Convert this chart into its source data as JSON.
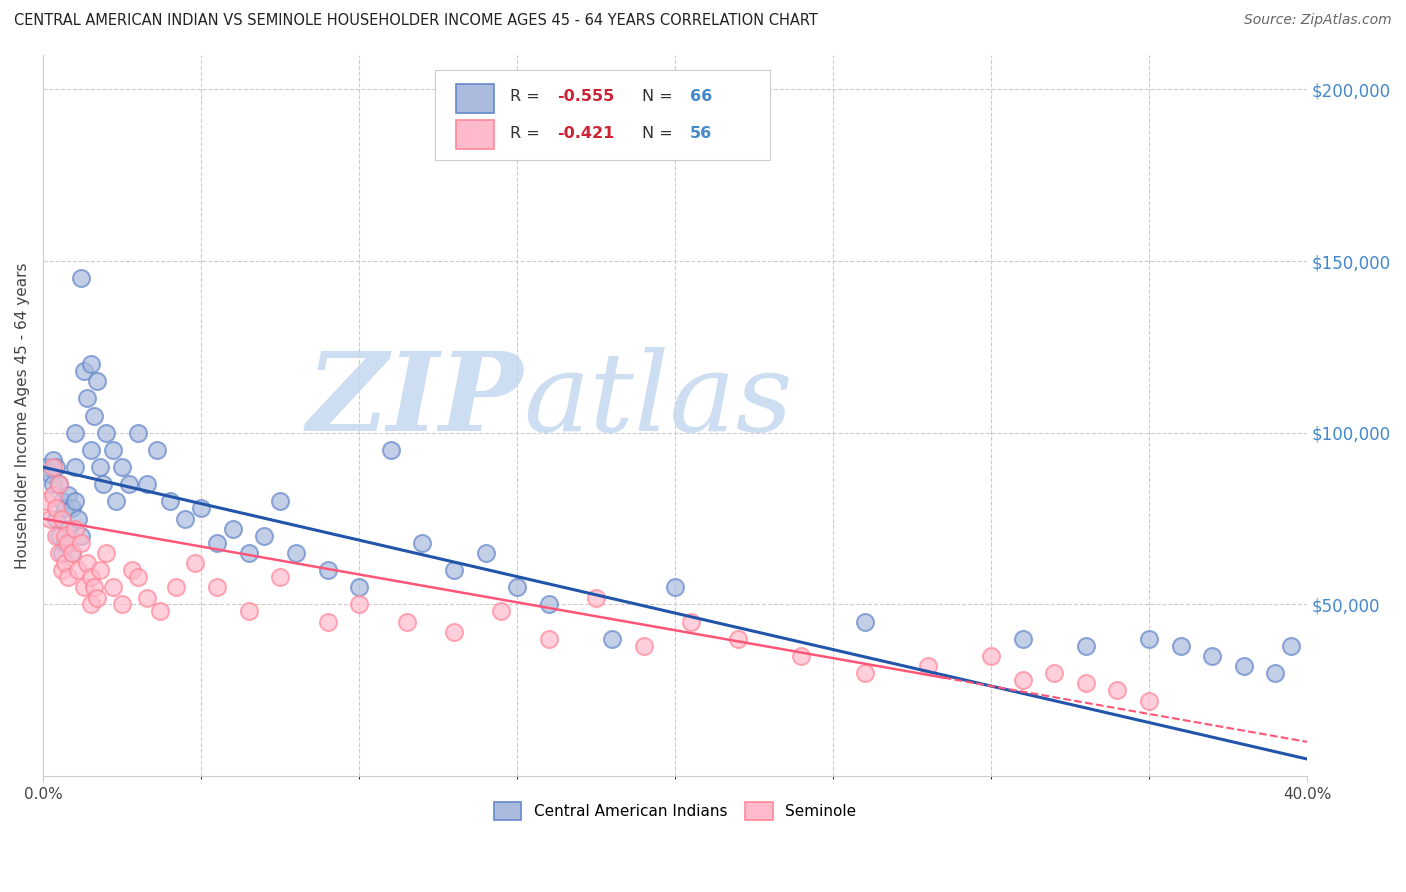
{
  "title": "CENTRAL AMERICAN INDIAN VS SEMINOLE HOUSEHOLDER INCOME AGES 45 - 64 YEARS CORRELATION CHART",
  "source": "Source: ZipAtlas.com",
  "ylabel": "Householder Income Ages 45 - 64 years",
  "xlim": [
    0.0,
    0.4
  ],
  "ylim": [
    0,
    210000
  ],
  "legend_blue_R": "-0.555",
  "legend_blue_N": "66",
  "legend_pink_R": "-0.421",
  "legend_pink_N": "56",
  "blue_scatter_color": "#AABBDD",
  "blue_edge_color": "#6688CC",
  "pink_scatter_color": "#FFBBCC",
  "pink_edge_color": "#FF8899",
  "blue_line_color": "#2255AA",
  "pink_line_color": "#FF5577",
  "watermark_color": "#C5D8F0",
  "background_color": "#FFFFFF",
  "grid_color": "#CCCCCC",
  "right_axis_color": "#4488CC",
  "blue_x": [
    0.001,
    0.002,
    0.003,
    0.003,
    0.004,
    0.004,
    0.005,
    0.005,
    0.006,
    0.006,
    0.007,
    0.007,
    0.008,
    0.008,
    0.009,
    0.009,
    0.01,
    0.01,
    0.01,
    0.011,
    0.012,
    0.012,
    0.013,
    0.014,
    0.015,
    0.015,
    0.016,
    0.017,
    0.018,
    0.019,
    0.02,
    0.022,
    0.023,
    0.025,
    0.027,
    0.03,
    0.033,
    0.036,
    0.04,
    0.045,
    0.05,
    0.055,
    0.06,
    0.065,
    0.07,
    0.075,
    0.08,
    0.09,
    0.1,
    0.11,
    0.12,
    0.13,
    0.14,
    0.15,
    0.16,
    0.18,
    0.2,
    0.26,
    0.31,
    0.33,
    0.35,
    0.36,
    0.37,
    0.38,
    0.39,
    0.395
  ],
  "blue_y": [
    90000,
    88000,
    92000,
    85000,
    90000,
    75000,
    85000,
    70000,
    80000,
    65000,
    78000,
    68000,
    82000,
    72000,
    78000,
    65000,
    80000,
    90000,
    100000,
    75000,
    145000,
    70000,
    118000,
    110000,
    120000,
    95000,
    105000,
    115000,
    90000,
    85000,
    100000,
    95000,
    80000,
    90000,
    85000,
    100000,
    85000,
    95000,
    80000,
    75000,
    78000,
    68000,
    72000,
    65000,
    70000,
    80000,
    65000,
    60000,
    55000,
    95000,
    68000,
    60000,
    65000,
    55000,
    50000,
    40000,
    55000,
    45000,
    40000,
    38000,
    40000,
    38000,
    35000,
    32000,
    30000,
    38000
  ],
  "pink_x": [
    0.001,
    0.002,
    0.003,
    0.003,
    0.004,
    0.004,
    0.005,
    0.005,
    0.006,
    0.006,
    0.007,
    0.007,
    0.008,
    0.008,
    0.009,
    0.01,
    0.011,
    0.012,
    0.013,
    0.014,
    0.015,
    0.015,
    0.016,
    0.017,
    0.018,
    0.02,
    0.022,
    0.025,
    0.028,
    0.03,
    0.033,
    0.037,
    0.042,
    0.048,
    0.055,
    0.065,
    0.075,
    0.09,
    0.1,
    0.115,
    0.13,
    0.145,
    0.16,
    0.175,
    0.19,
    0.205,
    0.22,
    0.24,
    0.26,
    0.28,
    0.3,
    0.31,
    0.32,
    0.33,
    0.34,
    0.35
  ],
  "pink_y": [
    80000,
    75000,
    82000,
    90000,
    78000,
    70000,
    85000,
    65000,
    75000,
    60000,
    70000,
    62000,
    68000,
    58000,
    65000,
    72000,
    60000,
    68000,
    55000,
    62000,
    58000,
    50000,
    55000,
    52000,
    60000,
    65000,
    55000,
    50000,
    60000,
    58000,
    52000,
    48000,
    55000,
    62000,
    55000,
    48000,
    58000,
    45000,
    50000,
    45000,
    42000,
    48000,
    40000,
    52000,
    38000,
    45000,
    40000,
    35000,
    30000,
    32000,
    35000,
    28000,
    30000,
    27000,
    25000,
    22000
  ]
}
